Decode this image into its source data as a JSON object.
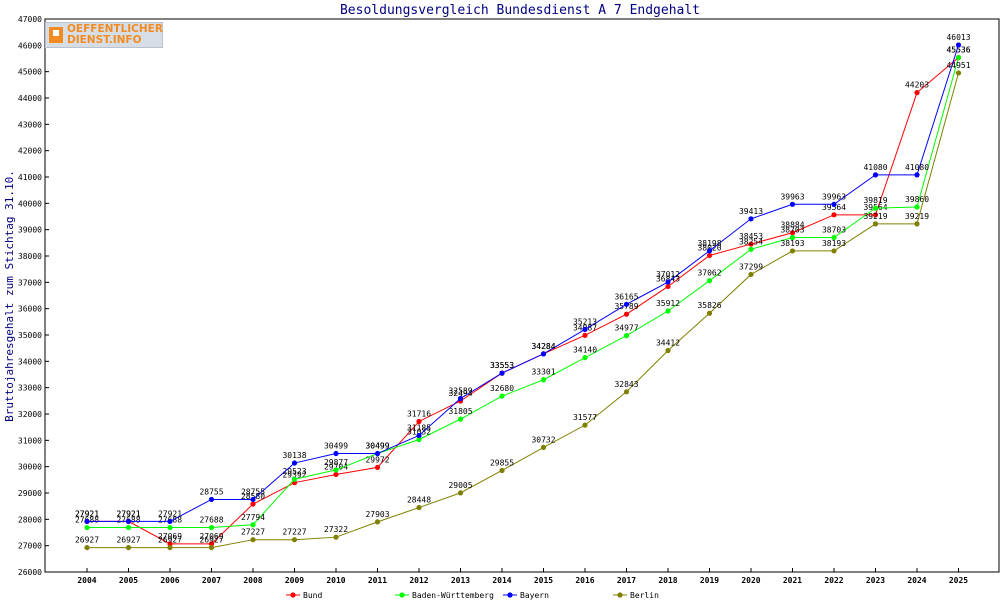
{
  "chart_data": {
    "type": "line",
    "title": "Besoldungsvergleich Bundesdienst A 7 Endgehalt",
    "xlabel": "",
    "ylabel": "Bruttojahresgehalt zum Stichtag 31.10.",
    "ylim": [
      26000,
      47000
    ],
    "ytick_step": 1000,
    "grid": false,
    "legend_position": "bottom",
    "categories": [
      "2004",
      "2005",
      "2006",
      "2007",
      "2008",
      "2009",
      "2010",
      "2011",
      "2012",
      "2013",
      "2014",
      "2015",
      "2016",
      "2017",
      "2018",
      "2019",
      "2020",
      "2021",
      "2022",
      "2023",
      "2024",
      "2025"
    ],
    "series": [
      {
        "name": "Bund",
        "color": "#ff0000",
        "values": [
          27921,
          27921,
          27069,
          27069,
          28580,
          29392,
          29704,
          29972,
          31716,
          32494,
          33553,
          34284,
          34987,
          35789,
          36843,
          38020,
          38453,
          38884,
          39564,
          39564,
          44203,
          45536
        ]
      },
      {
        "name": "Baden-Württemberg",
        "color": "#00ff00",
        "values": [
          27688,
          27688,
          27688,
          27688,
          27794,
          29523,
          29877,
          30499,
          31032,
          31805,
          32680,
          33301,
          34140,
          34977,
          35912,
          37062,
          38254,
          38703,
          38703,
          39819,
          39860,
          45536
        ]
      },
      {
        "name": "Bayern",
        "color": "#0000ff",
        "values": [
          27921,
          27921,
          27921,
          28755,
          28755,
          30138,
          30499,
          30499,
          31185,
          32589,
          33553,
          34284,
          35213,
          36165,
          37012,
          38198,
          39413,
          39963,
          39963,
          41080,
          41080,
          46013
        ]
      },
      {
        "name": "Berlin",
        "color": "#808000",
        "values": [
          26927,
          26927,
          26927,
          26927,
          27227,
          27227,
          27322,
          27903,
          28448,
          29005,
          29855,
          30732,
          31577,
          32843,
          34412,
          35826,
          37299,
          38193,
          38193,
          39219,
          39219,
          44951
        ]
      }
    ]
  },
  "logo": {
    "line1": "OEFFENTLICHER",
    "line2": "DIENST.INFO"
  }
}
